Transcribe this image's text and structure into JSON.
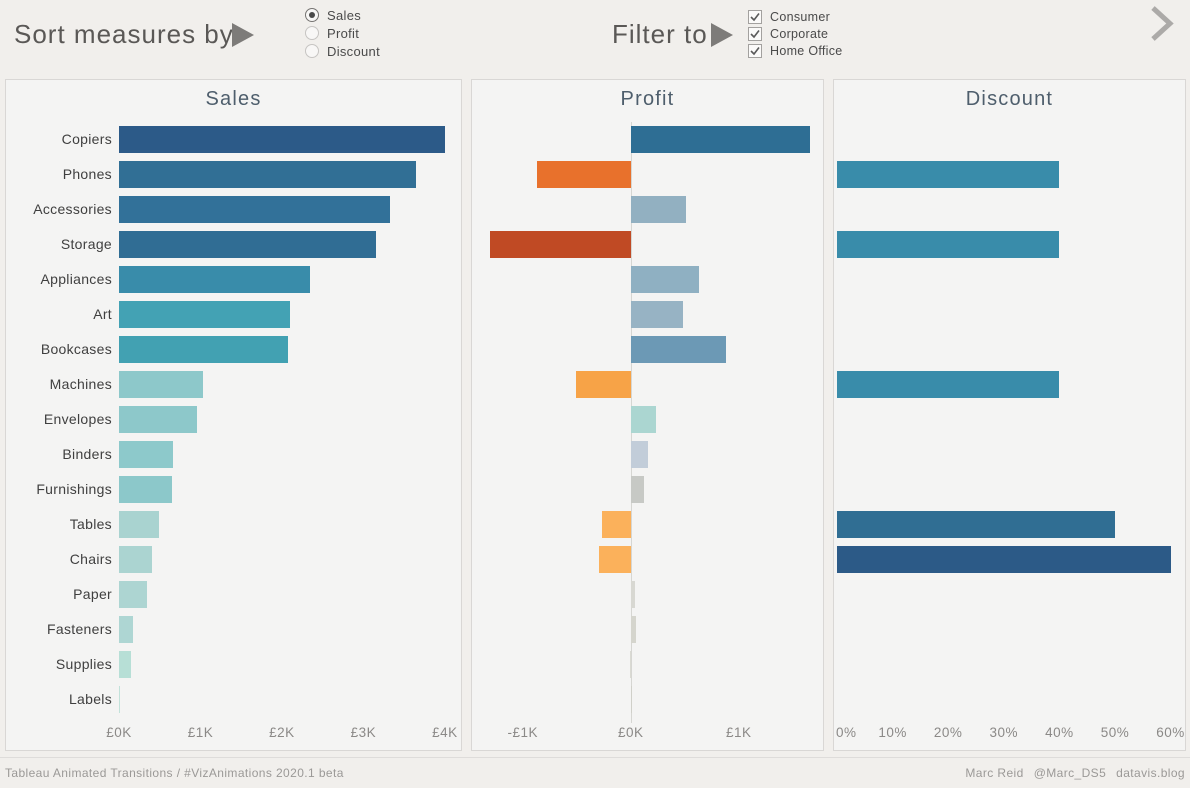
{
  "header": {
    "sort": {
      "label": "Sort measures by",
      "icon": "play-icon",
      "options": [
        "Sales",
        "Profit",
        "Discount"
      ],
      "selected": "Sales"
    },
    "filter": {
      "label": "Filter to",
      "icon": "play-icon",
      "options": [
        "Consumer",
        "Corporate",
        "Home Office"
      ],
      "checked": [
        true,
        true,
        true
      ]
    },
    "nav_icon": "chevron-right-icon"
  },
  "footer": {
    "left": "Tableau Animated Transitions / #VizAnimations 2020.1 beta",
    "right": [
      "Marc Reid",
      "@Marc_DS5",
      "datavis.blog"
    ]
  },
  "colors": {
    "page_bg": "#f1efec",
    "panel_bg": "#f4f4f3",
    "panel_border": "#d9d7d5",
    "title_text": "#4e5e6c",
    "positive_blue": "#2e6e94",
    "negative_orange": "#e8712c",
    "negative_rust": "#c04a24",
    "light_teal": "#8dc8ca"
  },
  "chart_data": [
    {
      "type": "bar",
      "orientation": "horizontal",
      "title": "Sales",
      "show_category_labels": true,
      "categories": [
        "Copiers",
        "Phones",
        "Accessories",
        "Storage",
        "Appliances",
        "Art",
        "Bookcases",
        "Machines",
        "Envelopes",
        "Binders",
        "Furnishings",
        "Tables",
        "Chairs",
        "Paper",
        "Fasteners",
        "Supplies",
        "Labels"
      ],
      "values": [
        4.0,
        3.64,
        3.33,
        3.15,
        2.34,
        2.1,
        2.07,
        1.03,
        0.96,
        0.66,
        0.65,
        0.49,
        0.4,
        0.34,
        0.17,
        0.15,
        0.01
      ],
      "unit": "GBP thousands",
      "xlabels": [
        "£0K",
        "£1K",
        "£2K",
        "£3K",
        "£4K"
      ],
      "xticks": [
        0,
        1,
        2,
        3,
        4
      ],
      "xlim": [
        0,
        4.1
      ],
      "grid": false,
      "zero_line": false,
      "colors": [
        "#2c5a88",
        "#316f95",
        "#327199",
        "#306d94",
        "#398caa",
        "#43a2b4",
        "#42a1b2",
        "#8dc8ca",
        "#8dc8ca",
        "#8dc9cb",
        "#8cc8ca",
        "#a9d3d0",
        "#abd4d1",
        "#add5d2",
        "#aed6d3",
        "#b7dfd6",
        "#c2e2da"
      ]
    },
    {
      "type": "bar",
      "orientation": "horizontal",
      "title": "Profit",
      "show_category_labels": false,
      "categories": [
        "Copiers",
        "Phones",
        "Accessories",
        "Storage",
        "Appliances",
        "Art",
        "Bookcases",
        "Machines",
        "Envelopes",
        "Binders",
        "Furnishings",
        "Tables",
        "Chairs",
        "Paper",
        "Fasteners",
        "Supplies",
        "Labels"
      ],
      "values": [
        1.66,
        -0.87,
        0.51,
        -1.3,
        0.63,
        0.48,
        0.88,
        -0.51,
        0.23,
        0.16,
        0.12,
        -0.27,
        -0.29,
        0.04,
        0.05,
        -0.01,
        0.0
      ],
      "unit": "GBP thousands",
      "xlabels": [
        "-£1K",
        "£0K",
        "£1K"
      ],
      "xticks": [
        -1,
        0,
        1
      ],
      "xlim": [
        -1.47,
        1.78
      ],
      "grid": false,
      "zero_line": true,
      "colors": [
        "#2e6e94",
        "#e8712c",
        "#92b0c1",
        "#c04a24",
        "#8fb0c2",
        "#97b3c4",
        "#6c99b5",
        "#f7a347",
        "#abd6d1",
        "#c2cdd9",
        "#c7c9c5",
        "#fbb15b",
        "#fbb15b",
        "#d8d8d2",
        "#d5d5cd",
        "#dadad3",
        "#d0d0c9"
      ]
    },
    {
      "type": "bar",
      "orientation": "horizontal",
      "title": "Discount",
      "show_category_labels": false,
      "categories": [
        "Copiers",
        "Phones",
        "Accessories",
        "Storage",
        "Appliances",
        "Art",
        "Bookcases",
        "Machines",
        "Envelopes",
        "Binders",
        "Furnishings",
        "Tables",
        "Chairs",
        "Paper",
        "Fasteners",
        "Supplies",
        "Labels"
      ],
      "values": [
        null,
        40,
        null,
        40,
        null,
        null,
        null,
        40,
        null,
        null,
        null,
        50,
        60,
        null,
        null,
        null,
        null
      ],
      "unit": "percent",
      "xlabels": [
        "0%",
        "10%",
        "20%",
        "30%",
        "40%",
        "50%",
        "60%"
      ],
      "xticks": [
        0,
        10,
        20,
        30,
        40,
        50,
        60
      ],
      "xlim": [
        -0.54,
        62.6
      ],
      "grid": false,
      "zero_line": false,
      "colors": [
        null,
        "#398caa",
        null,
        "#398caa",
        null,
        null,
        null,
        "#398caa",
        null,
        null,
        null,
        "#306e93",
        "#2c5a87",
        null,
        null,
        null,
        null
      ]
    }
  ]
}
